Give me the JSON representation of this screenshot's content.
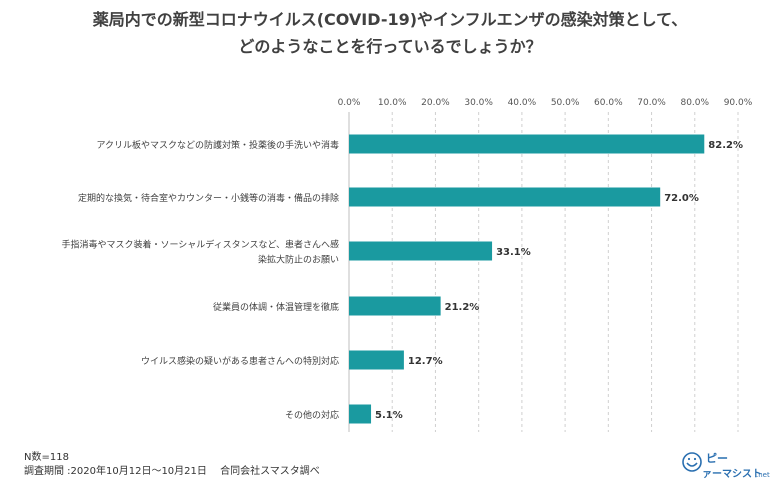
{
  "chart_data": {
    "type": "bar",
    "orientation": "horizontal",
    "title_lines": [
      "薬局内での新型コロナウイルス(COVID-19)やインフルエンザの感染対策として、",
      "どのようなことを行っているでしょうか？"
    ],
    "categories": [
      "アクリル板やマスクなどの防護対策・投薬後の手洗いや消毒",
      "定期的な換気・待合室やカウンター・小銭等の消毒・備品の排除",
      "手指消毒やマスク装着・ソーシャルディスタンスなど、患者さんへ感染拡大防止のお願い",
      "従業員の体調・体温管理を徹底",
      "ウイルス感染の疑いがある患者さんへの特別対応",
      "その他の対応"
    ],
    "category_lines": [
      [
        "アクリル板やマスクなどの防護対策・投薬後の手洗いや消毒"
      ],
      [
        "定期的な換気・待合室やカウンター・小銭等の消毒・備品の排除"
      ],
      [
        "手指消毒やマスク装着・ソーシャルディスタンスなど、患者さんへ感",
        "染拡大防止のお願い"
      ],
      [
        "従業員の体調・体温管理を徹底"
      ],
      [
        "ウイルス感染の疑いがある患者さんへの特別対応"
      ],
      [
        "その他の対応"
      ]
    ],
    "values": [
      82.2,
      72.0,
      33.1,
      21.2,
      12.7,
      5.1
    ],
    "value_labels": [
      "82.2%",
      "72.0%",
      "33.1%",
      "21.2%",
      "12.7%",
      "5.1%"
    ],
    "xticks": [
      0,
      10,
      20,
      30,
      40,
      50,
      60,
      70,
      80,
      90
    ],
    "xtick_labels": [
      "0.0%",
      "10.0%",
      "20.0%",
      "30.0%",
      "40.0%",
      "50.0%",
      "60.0%",
      "70.0%",
      "80.0%",
      "90.0%"
    ],
    "xlim": [
      0,
      90
    ],
    "axis_position": "top",
    "grid": "vertical dashed",
    "bar_color": "#1a9aa0"
  },
  "footer": {
    "n_label": "N数=118",
    "period_label": "調査期間 :2020年10月12日～10月21日　 合同会社スマスタ調べ"
  },
  "logo": {
    "text_main": "ピー",
    "text_sub": "ァーマシスト",
    "text_domain": ".net"
  }
}
